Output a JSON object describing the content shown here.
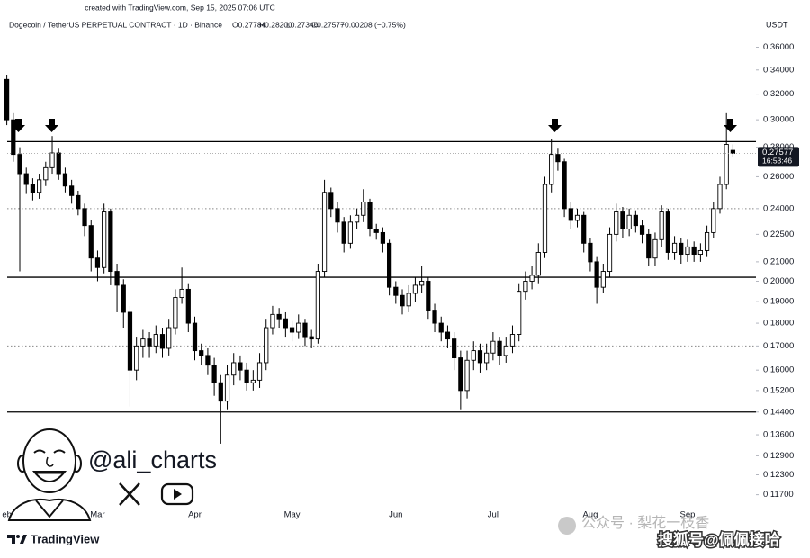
{
  "chart_data": {
    "type": "candlestick",
    "created": "created with TradingView.com, Sep 15, 2025 07:06 UTC",
    "symbol": "Dogecoin / TetherUS PERPETUAL CONTRACT · 1D · Binance",
    "ohlc_text": [
      "O0.27784",
      "H0.28200",
      "L0.27346",
      "C0.27577",
      "−0.00208 (−0.75%)"
    ],
    "currency": "USDT",
    "price_label_time": "16:53:46",
    "watermark": "@ali_charts",
    "logo": "TradingView",
    "footer_watermarks": [
      "公众号 · 梨花一枝香",
      "搜狐号@佩佩接哈"
    ],
    "log_scale": true,
    "grid": false,
    "up_color": "#ffffff",
    "down_color": "#000000",
    "outline_color": "#000000",
    "ylim": [
      0.113,
      0.372
    ],
    "yticks": [
      {
        "value": 0.36,
        "label": "0.36000"
      },
      {
        "value": 0.34,
        "label": "0.34000"
      },
      {
        "value": 0.32,
        "label": "0.32000"
      },
      {
        "value": 0.3,
        "label": "0.30000"
      },
      {
        "value": 0.28,
        "label": "0.28000"
      },
      {
        "value": 0.26,
        "label": "0.26000"
      },
      {
        "value": 0.24,
        "label": "0.24000"
      },
      {
        "value": 0.225,
        "label": "0.22500"
      },
      {
        "value": 0.21,
        "label": "0.21000"
      },
      {
        "value": 0.2,
        "label": "0.20000"
      },
      {
        "value": 0.19,
        "label": "0.19000"
      },
      {
        "value": 0.18,
        "label": "0.18000"
      },
      {
        "value": 0.17,
        "label": "0.17000"
      },
      {
        "value": 0.16,
        "label": "0.16000"
      },
      {
        "value": 0.152,
        "label": "0.15200"
      },
      {
        "value": 0.144,
        "label": "0.14400"
      },
      {
        "value": 0.136,
        "label": "0.13600"
      },
      {
        "value": 0.129,
        "label": "0.12900"
      },
      {
        "value": 0.123,
        "label": "0.12300"
      },
      {
        "value": 0.117,
        "label": "0.11700"
      }
    ],
    "levels": [
      {
        "value": 0.284,
        "style": "solid"
      },
      {
        "value": 0.202,
        "style": "solid"
      },
      {
        "value": 0.144,
        "style": "solid"
      },
      {
        "value": 0.24,
        "style": "dotted"
      },
      {
        "value": 0.17,
        "style": "dotted"
      }
    ],
    "categories": [
      "eb",
      null,
      null,
      null,
      null,
      null,
      null,
      null,
      null,
      null,
      null,
      null,
      null,
      null,
      "Mar",
      null,
      null,
      null,
      null,
      null,
      null,
      null,
      null,
      null,
      null,
      null,
      null,
      null,
      null,
      "Apr",
      null,
      null,
      null,
      null,
      null,
      null,
      null,
      null,
      null,
      null,
      null,
      null,
      null,
      null,
      "May",
      null,
      null,
      null,
      null,
      null,
      null,
      null,
      null,
      null,
      null,
      null,
      null,
      null,
      null,
      null,
      "Jun",
      null,
      null,
      null,
      null,
      null,
      null,
      null,
      null,
      null,
      null,
      null,
      null,
      null,
      null,
      "Jul",
      null,
      null,
      null,
      null,
      null,
      null,
      null,
      null,
      null,
      null,
      null,
      null,
      null,
      null,
      "Aug",
      null,
      null,
      null,
      null,
      null,
      null,
      null,
      null,
      null,
      null,
      null,
      null,
      null,
      null,
      "Sep",
      null,
      null,
      null,
      null,
      null,
      null,
      null
    ],
    "open": [
      0.332,
      0.3,
      0.275,
      0.262,
      0.255,
      0.25,
      0.258,
      0.266,
      0.276,
      0.262,
      0.254,
      0.248,
      0.24,
      0.23,
      0.212,
      0.207,
      0.238,
      0.205,
      0.198,
      0.185,
      0.16,
      0.17,
      0.173,
      0.17,
      0.175,
      0.169,
      0.178,
      0.192,
      0.196,
      0.18,
      0.168,
      0.166,
      0.162,
      0.155,
      0.148,
      0.158,
      0.163,
      0.16,
      0.155,
      0.156,
      0.163,
      0.178,
      0.184,
      0.182,
      0.178,
      0.176,
      0.18,
      0.174,
      0.173,
      0.205,
      0.25,
      0.24,
      0.232,
      0.22,
      0.232,
      0.236,
      0.244,
      0.228,
      0.226,
      0.22,
      0.197,
      0.193,
      0.188,
      0.194,
      0.198,
      0.2,
      0.186,
      0.18,
      0.176,
      0.173,
      0.165,
      0.152,
      0.164,
      0.168,
      0.163,
      0.167,
      0.172,
      0.166,
      0.17,
      0.175,
      0.195,
      0.2,
      0.203,
      0.215,
      0.255,
      0.275,
      0.27,
      0.24,
      0.233,
      0.236,
      0.22,
      0.21,
      0.197,
      0.205,
      0.225,
      0.238,
      0.228,
      0.236,
      0.23,
      0.225,
      0.212,
      0.222,
      0.238,
      0.215,
      0.22,
      0.214,
      0.218,
      0.214,
      0.216,
      0.226,
      0.24,
      0.255,
      0.27784
    ],
    "high": [
      0.336,
      0.305,
      0.28,
      0.266,
      0.259,
      0.262,
      0.27,
      0.288,
      0.279,
      0.266,
      0.258,
      0.251,
      0.243,
      0.233,
      0.216,
      0.243,
      0.24,
      0.209,
      0.201,
      0.188,
      0.174,
      0.177,
      0.176,
      0.179,
      0.178,
      0.182,
      0.196,
      0.207,
      0.199,
      0.183,
      0.171,
      0.169,
      0.165,
      0.158,
      0.162,
      0.167,
      0.166,
      0.163,
      0.16,
      0.167,
      0.182,
      0.188,
      0.187,
      0.185,
      0.181,
      0.184,
      0.182,
      0.177,
      0.209,
      0.258,
      0.253,
      0.244,
      0.235,
      0.236,
      0.24,
      0.252,
      0.246,
      0.231,
      0.229,
      0.222,
      0.2,
      0.196,
      0.198,
      0.202,
      0.208,
      0.202,
      0.189,
      0.183,
      0.179,
      0.176,
      0.168,
      0.168,
      0.172,
      0.171,
      0.171,
      0.176,
      0.174,
      0.174,
      0.179,
      0.199,
      0.205,
      0.208,
      0.22,
      0.26,
      0.286,
      0.279,
      0.272,
      0.244,
      0.24,
      0.238,
      0.223,
      0.213,
      0.209,
      0.229,
      0.243,
      0.241,
      0.24,
      0.239,
      0.233,
      0.228,
      0.226,
      0.242,
      0.24,
      0.224,
      0.223,
      0.222,
      0.221,
      0.22,
      0.23,
      0.244,
      0.26,
      0.305,
      0.282
    ],
    "low": [
      0.296,
      0.27,
      0.205,
      0.249,
      0.245,
      0.246,
      0.254,
      0.262,
      0.258,
      0.25,
      0.243,
      0.236,
      0.224,
      0.205,
      0.2,
      0.204,
      0.198,
      0.185,
      0.178,
      0.146,
      0.156,
      0.165,
      0.165,
      0.167,
      0.165,
      0.166,
      0.175,
      0.189,
      0.176,
      0.164,
      0.162,
      0.158,
      0.15,
      0.133,
      0.145,
      0.154,
      0.156,
      0.152,
      0.152,
      0.153,
      0.16,
      0.175,
      0.178,
      0.174,
      0.172,
      0.173,
      0.17,
      0.169,
      0.171,
      0.202,
      0.235,
      0.226,
      0.215,
      0.217,
      0.228,
      0.232,
      0.224,
      0.222,
      0.215,
      0.193,
      0.189,
      0.184,
      0.185,
      0.19,
      0.194,
      0.182,
      0.176,
      0.172,
      0.169,
      0.16,
      0.145,
      0.149,
      0.16,
      0.159,
      0.16,
      0.164,
      0.162,
      0.163,
      0.167,
      0.172,
      0.191,
      0.196,
      0.199,
      0.212,
      0.25,
      0.264,
      0.235,
      0.228,
      0.229,
      0.215,
      0.205,
      0.189,
      0.194,
      0.202,
      0.221,
      0.223,
      0.224,
      0.226,
      0.22,
      0.208,
      0.208,
      0.218,
      0.211,
      0.211,
      0.209,
      0.21,
      0.21,
      0.21,
      0.213,
      0.223,
      0.237,
      0.252,
      0.27346
    ],
    "close": [
      0.3,
      0.275,
      0.262,
      0.255,
      0.25,
      0.258,
      0.266,
      0.276,
      0.262,
      0.254,
      0.248,
      0.24,
      0.23,
      0.212,
      0.207,
      0.238,
      0.205,
      0.198,
      0.185,
      0.16,
      0.17,
      0.173,
      0.17,
      0.175,
      0.169,
      0.178,
      0.192,
      0.196,
      0.18,
      0.168,
      0.166,
      0.162,
      0.155,
      0.148,
      0.158,
      0.163,
      0.16,
      0.155,
      0.156,
      0.163,
      0.178,
      0.184,
      0.182,
      0.178,
      0.176,
      0.18,
      0.174,
      0.173,
      0.205,
      0.25,
      0.24,
      0.232,
      0.22,
      0.232,
      0.236,
      0.244,
      0.228,
      0.226,
      0.22,
      0.197,
      0.193,
      0.188,
      0.194,
      0.198,
      0.2,
      0.186,
      0.18,
      0.176,
      0.173,
      0.165,
      0.152,
      0.164,
      0.168,
      0.163,
      0.167,
      0.172,
      0.166,
      0.17,
      0.175,
      0.195,
      0.2,
      0.203,
      0.215,
      0.255,
      0.275,
      0.27,
      0.24,
      0.233,
      0.236,
      0.22,
      0.21,
      0.197,
      0.205,
      0.225,
      0.238,
      0.228,
      0.236,
      0.23,
      0.225,
      0.212,
      0.222,
      0.238,
      0.215,
      0.22,
      0.214,
      0.218,
      0.214,
      0.216,
      0.226,
      0.24,
      0.255,
      0.282,
      0.27577
    ]
  }
}
